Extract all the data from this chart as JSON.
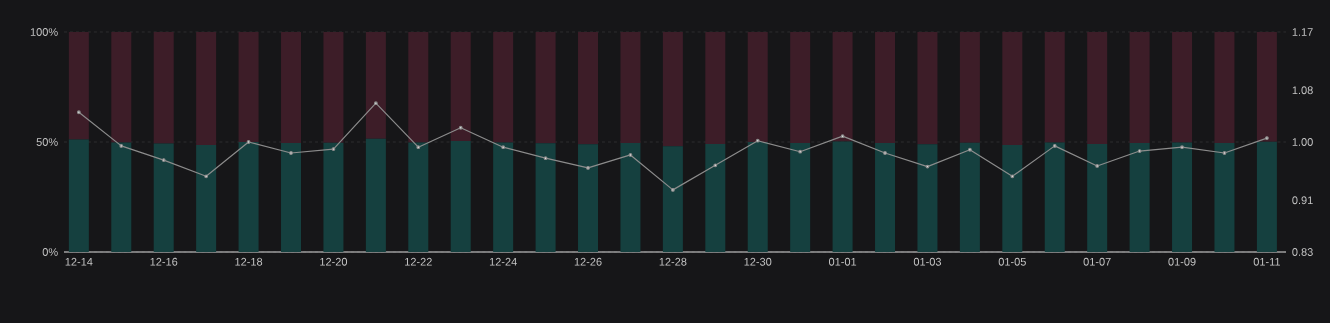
{
  "chart_data": {
    "type": "bar",
    "stacked": true,
    "grid": "y",
    "marker": "circle",
    "categories": [
      "12-14",
      null,
      "12-16",
      null,
      "12-18",
      null,
      "12-20",
      null,
      "12-22",
      null,
      "12-24",
      null,
      "12-26",
      null,
      "12-28",
      null,
      "12-30",
      null,
      "01-01",
      null,
      "01-03",
      null,
      "01-05",
      null,
      "01-07",
      null,
      "01-09",
      null,
      "01-11"
    ],
    "series": [
      {
        "color": "#15403f",
        "values": [
          51.1,
          49.8,
          49.3,
          48.6,
          50.0,
          49.6,
          49.7,
          51.5,
          49.8,
          50.5,
          49.8,
          49.4,
          49.0,
          49.5,
          48.1,
          49.1,
          50.0,
          49.6,
          50.2,
          49.6,
          49.0,
          49.7,
          48.6,
          49.8,
          49.1,
          49.6,
          49.8,
          49.6,
          50.1
        ]
      },
      {
        "color": "#3d1d28",
        "values": [
          48.9,
          50.2,
          50.7,
          51.4,
          50.0,
          50.4,
          50.3,
          48.5,
          50.2,
          49.5,
          50.2,
          50.6,
          51.0,
          50.5,
          51.9,
          50.9,
          50.0,
          50.4,
          49.8,
          50.4,
          51.0,
          50.3,
          51.4,
          50.2,
          50.9,
          50.4,
          50.2,
          50.4,
          49.9
        ]
      },
      {
        "type": "line",
        "axis": "y2",
        "color": "#8c8c8c",
        "values": [
          1.046,
          0.994,
          0.972,
          0.947,
          1.0,
          0.983,
          0.989,
          1.06,
          0.992,
          1.022,
          0.992,
          0.975,
          0.96,
          0.98,
          0.926,
          0.964,
          1.002,
          0.985,
          1.009,
          0.983,
          0.962,
          0.988,
          0.947,
          0.994,
          0.963,
          0.986,
          0.992,
          0.983,
          1.006
        ]
      }
    ],
    "ylim": [
      0,
      100
    ],
    "yticks": [
      {
        "value": 0,
        "label": "0%"
      },
      {
        "value": 50,
        "label": "50%"
      },
      {
        "value": 100,
        "label": "100%"
      }
    ],
    "y2lim": [
      0.83,
      1.17
    ],
    "y2ticks": [
      0.83,
      0.91,
      {
        "value": 1.0,
        "label": "1.00"
      },
      1.08,
      1.17
    ]
  }
}
